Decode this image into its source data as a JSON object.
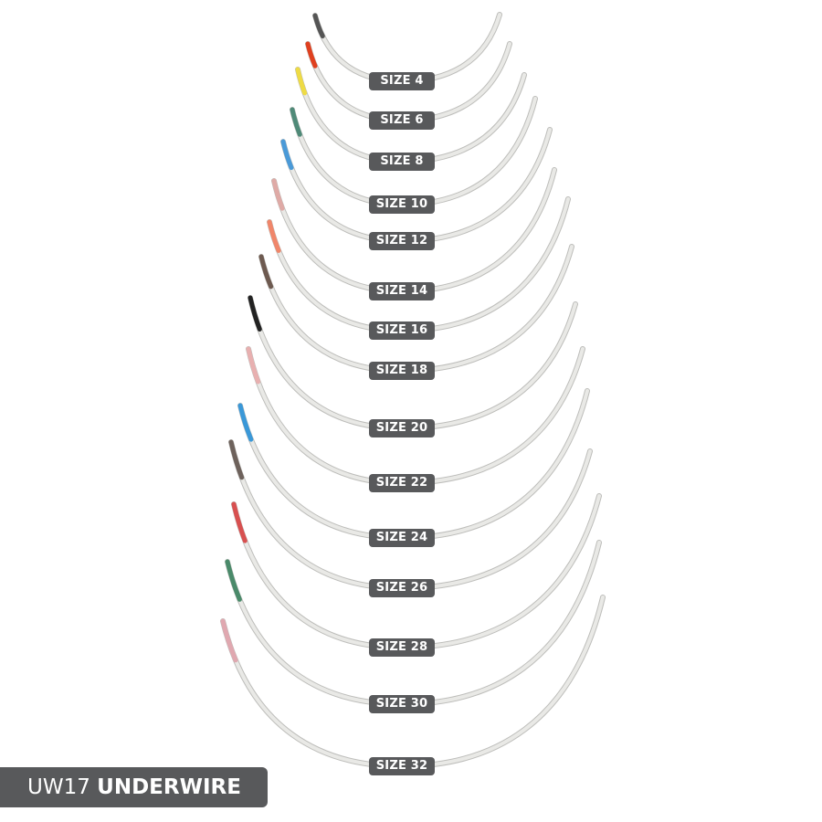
{
  "title": {
    "code": "UW17",
    "name": "UNDERWIRE"
  },
  "label_color": "#58595b",
  "wire_color": "#e9e9e6",
  "wires": [
    {
      "label": "SIZE 4",
      "tip_color": "#555555"
    },
    {
      "label": "SIZE 6",
      "tip_color": "#e0401f"
    },
    {
      "label": "SIZE 8",
      "tip_color": "#eedb45"
    },
    {
      "label": "SIZE 10",
      "tip_color": "#4f8a78"
    },
    {
      "label": "SIZE 12",
      "tip_color": "#4a9ad8"
    },
    {
      "label": "SIZE 14",
      "tip_color": "#dfaaa6"
    },
    {
      "label": "SIZE 16",
      "tip_color": "#f0866a"
    },
    {
      "label": "SIZE 18",
      "tip_color": "#6e5a50"
    },
    {
      "label": "SIZE 20",
      "tip_color": "#222222"
    },
    {
      "label": "SIZE 22",
      "tip_color": "#e8b0b0"
    },
    {
      "label": "SIZE 24",
      "tip_color": "#3a98d8"
    },
    {
      "label": "SIZE 26",
      "tip_color": "#6e625c"
    },
    {
      "label": "SIZE 28",
      "tip_color": "#d85050"
    },
    {
      "label": "SIZE 30",
      "tip_color": "#4a8a6a"
    },
    {
      "label": "SIZE 32",
      "tip_color": "#e0a8b0"
    }
  ]
}
